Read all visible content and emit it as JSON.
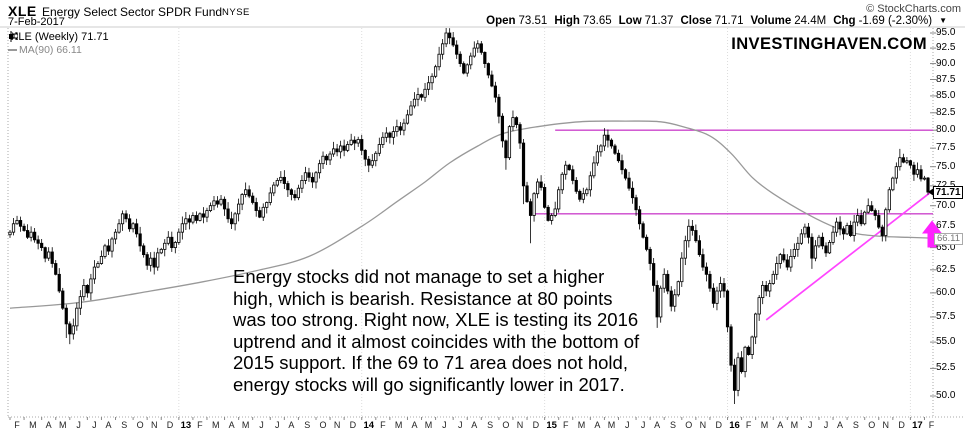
{
  "header": {
    "symbol": "XLE",
    "name": "Energy Select Sector SPDR Fund",
    "exchange": "NYSE",
    "date": "7-Feb-2017",
    "copyright": "© StockCharts.com",
    "quote": {
      "open_label": "Open",
      "open": "73.51",
      "high_label": "High",
      "high": "73.65",
      "low_label": "Low",
      "low": "71.37",
      "close_label": "Close",
      "close": "71.71",
      "volume_label": "Volume",
      "volume": "24.4M",
      "chg_label": "Chg",
      "chg": "-1.69 (-2.30%)",
      "chg_direction": "▼"
    }
  },
  "legend": {
    "series1": "XLE (Weekly) 71.71",
    "series2": "MA(90) 66.11"
  },
  "watermark": "INVESTINGHAVEN.COM",
  "annotation": {
    "lines": [
      "Energy stocks did not manage to set a higher",
      "high, which is bearish. Resistance at 80 points",
      "was too strong. Right now, XLE is testing its 2016",
      "uptrend and it almost coincides with the bottom of",
      "2015 support. If the 69 to 71 area does not hold,",
      "energy stocks will go significantly lower in 2017."
    ]
  },
  "chart_data": {
    "type": "candlestick",
    "symbol": "XLE",
    "timeframe": "Weekly",
    "scale": "log",
    "ylim": [
      50,
      95
    ],
    "grid": "off",
    "last_price": "71.71",
    "ma_value": "66.11",
    "y_ticks": [
      95.0,
      92.5,
      90.0,
      87.5,
      85.0,
      82.5,
      80.0,
      77.5,
      75.0,
      72.5,
      70.0,
      67.5,
      65.0,
      62.5,
      60.0,
      57.5,
      55.0,
      52.5,
      50.0
    ],
    "x_labels": [
      "F",
      "M",
      "A",
      "M",
      "J",
      "J",
      "A",
      "S",
      "O",
      "N",
      "D",
      "13",
      "F",
      "M",
      "A",
      "M",
      "J",
      "J",
      "A",
      "S",
      "O",
      "N",
      "D",
      "14",
      "F",
      "M",
      "A",
      "M",
      "J",
      "J",
      "A",
      "S",
      "O",
      "N",
      "D",
      "15",
      "F",
      "M",
      "A",
      "M",
      "J",
      "J",
      "A",
      "S",
      "O",
      "N",
      "D",
      "16",
      "F",
      "M",
      "A",
      "M",
      "J",
      "J",
      "A",
      "S",
      "O",
      "N",
      "D",
      "17",
      "F"
    ],
    "first_open": 66.5,
    "closes": [
      66.8,
      67.8,
      68.2,
      67.5,
      67.0,
      66.2,
      66.8,
      65.9,
      65.5,
      65.0,
      63.8,
      64.5,
      63.2,
      62.0,
      60.2,
      58.4,
      56.8,
      55.8,
      56.6,
      58.4,
      59.6,
      60.8,
      60.0,
      61.5,
      62.8,
      63.2,
      64.0,
      65.2,
      64.6,
      66.0,
      66.8,
      67.8,
      69.0,
      68.4,
      67.2,
      67.8,
      66.6,
      65.2,
      64.2,
      63.0,
      63.8,
      62.8,
      64.4,
      64.8,
      65.5,
      66.2,
      65.0,
      65.6,
      66.8,
      67.8,
      68.4,
      68.0,
      68.8,
      68.2,
      69.0,
      68.6,
      69.4,
      70.0,
      70.6,
      70.2,
      70.8,
      69.6,
      68.4,
      67.8,
      69.0,
      70.2,
      71.4,
      72.0,
      71.2,
      70.4,
      69.4,
      68.6,
      69.8,
      70.4,
      71.6,
      72.6,
      73.2,
      73.6,
      72.8,
      72.0,
      71.4,
      71.0,
      72.2,
      73.2,
      74.2,
      73.6,
      73.0,
      74.2,
      75.4,
      76.4,
      75.9,
      76.7,
      77.4,
      77.0,
      77.8,
      77.2,
      78.0,
      78.6,
      78.2,
      78.7,
      77.2,
      76.0,
      75.2,
      75.8,
      76.8,
      78.0,
      79.0,
      79.6,
      79.0,
      79.8,
      80.5,
      80.0,
      81.0,
      82.2,
      83.5,
      84.5,
      85.2,
      84.8,
      86.0,
      87.0,
      88.0,
      89.5,
      91.5,
      93.2,
      95.0,
      94.2,
      93.0,
      91.5,
      90.0,
      88.5,
      89.8,
      91.2,
      92.5,
      93.2,
      91.8,
      90.0,
      88.2,
      86.5,
      84.8,
      82.0,
      78.5,
      76.2,
      80.5,
      81.8,
      80.8,
      78.2,
      72.5,
      70.5,
      68.8,
      71.5,
      73.0,
      72.3,
      69.8,
      68.2,
      68.8,
      69.6,
      72.0,
      74.0,
      75.2,
      74.6,
      73.2,
      71.8,
      70.8,
      71.5,
      72.0,
      73.8,
      75.5,
      77.0,
      77.8,
      79.3,
      78.6,
      77.8,
      76.8,
      75.8,
      74.6,
      73.5,
      72.2,
      71.0,
      69.5,
      67.8,
      66.2,
      64.8,
      63.2,
      60.8,
      57.5,
      60.5,
      62.0,
      60.2,
      58.6,
      59.8,
      61.2,
      63.8,
      65.8,
      67.5,
      67.0,
      65.8,
      64.2,
      62.8,
      62.0,
      60.5,
      58.9,
      60.2,
      61.0,
      60.2,
      56.5,
      52.8,
      50.5,
      53.5,
      52.2,
      54.5,
      53.8,
      55.5,
      57.8,
      59.5,
      60.8,
      60.2,
      61.0,
      62.0,
      63.2,
      64.2,
      63.6,
      62.8,
      64.0,
      64.8,
      65.5,
      66.6,
      67.4,
      66.2,
      63.8,
      65.2,
      66.2,
      65.2,
      64.4,
      65.6,
      66.8,
      68.0,
      67.2,
      66.6,
      67.6,
      66.4,
      68.0,
      68.8,
      67.8,
      69.2,
      70.0,
      69.4,
      68.8,
      67.4,
      66.4,
      69.5,
      72.0,
      73.5,
      75.0,
      76.2,
      75.6,
      75.8,
      75.2,
      74.0,
      74.6,
      73.4,
      73.5,
      71.71
    ],
    "wick_overrides": {
      "16": {
        "l": 55.4
      },
      "17": {
        "l": 54.8
      },
      "124": {
        "h": 96.2
      },
      "141": {
        "l": 74.6
      },
      "146": {
        "l": 70.2
      },
      "148": {
        "l": 65.5
      },
      "169": {
        "h": 80.3
      },
      "184": {
        "l": 56.4
      },
      "206": {
        "l": 49.3
      },
      "228": {
        "l": 62.6
      },
      "253": {
        "h": 77.4
      }
    },
    "last_candle": {
      "o": 73.51,
      "h": 73.65,
      "l": 71.37,
      "c": 71.71
    },
    "ma90_anchors": [
      [
        0,
        58.4
      ],
      [
        20,
        59.0
      ],
      [
        40,
        60.2
      ],
      [
        55,
        61.2
      ],
      [
        70,
        62.4
      ],
      [
        85,
        64.0
      ],
      [
        100,
        67.5
      ],
      [
        110,
        70.5
      ],
      [
        118,
        73.0
      ],
      [
        125,
        75.5
      ],
      [
        133,
        77.8
      ],
      [
        140,
        79.5
      ],
      [
        150,
        80.5
      ],
      [
        162,
        81.2
      ],
      [
        175,
        81.3
      ],
      [
        185,
        81.2
      ],
      [
        192,
        80.4
      ],
      [
        199,
        79.2
      ],
      [
        205,
        76.8
      ],
      [
        211,
        73.6
      ],
      [
        217,
        71.5
      ],
      [
        227,
        68.9
      ],
      [
        235,
        67.3
      ],
      [
        241,
        66.6
      ],
      [
        248,
        66.3
      ],
      [
        255,
        66.2
      ],
      [
        261,
        66.11
      ]
    ],
    "annotations": {
      "resistance": {
        "price": 80.0,
        "from_week": 155
      },
      "support": {
        "price": 69.0,
        "from_week": 149
      },
      "trendline": {
        "from": [
          215,
          57.2
        ],
        "to": [
          263.5,
          72.3
        ]
      },
      "arrow": {
        "tip_price": 68.2,
        "center_x": 932
      }
    },
    "colors": {
      "candle": "#000000",
      "ma": "#999999",
      "levels": "#cc44cc",
      "trend": "#ff44ff",
      "arrow": "#ff22ff",
      "axis": "#888888",
      "frame": "#aaaaaa",
      "yeargrid": "#dddddd"
    }
  }
}
